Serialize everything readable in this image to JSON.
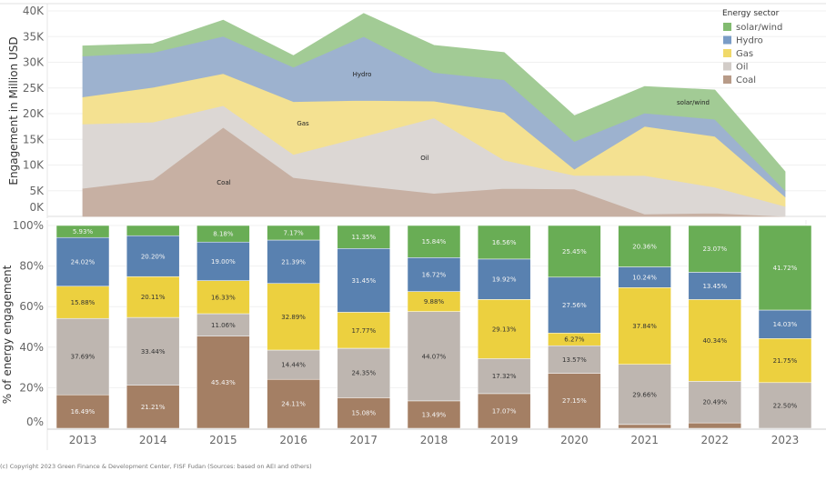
{
  "footer": "(c) Copyright 2023 Green Finance & Development Center, FISF Fudan (Sources: based on AEI and others)",
  "legend": {
    "title": "Energy sector",
    "items": [
      "solar/wind",
      "Hydro",
      "Gas",
      "Oil",
      "Coal"
    ]
  },
  "colors": {
    "area": {
      "Coal": "#c7b0a3",
      "Oil": "#dcd7d4",
      "Gas": "#f4e191",
      "Hydro": "#9db2cf",
      "solar/wind": "#a2cb95"
    },
    "bar": {
      "Coal": "#a47f64",
      "Oil": "#beb6b0",
      "Gas": "#ecd03f",
      "Hydro": "#5981b0",
      "solar/wind": "#69ad55"
    }
  },
  "chart_data": [
    {
      "type": "area",
      "title": "",
      "xlabel": "",
      "ylabel": "Engagement in Million USD",
      "ylim": [
        0,
        40000
      ],
      "yticks": [
        "0K",
        "5K",
        "10K",
        "15K",
        "20K",
        "25K",
        "30K",
        "35K",
        "40K"
      ],
      "stacked": true,
      "grid": true,
      "legend_position": "top-right",
      "categories": [
        "2013",
        "2014",
        "2015",
        "2016",
        "2017",
        "2018",
        "2019",
        "2020",
        "2021",
        "2022",
        "2023"
      ],
      "series": [
        {
          "name": "Coal",
          "values": [
            5470,
            7130,
            17350,
            7550,
            5960,
            4490,
            5450,
            5320,
            470,
            650,
            0
          ]
        },
        {
          "name": "Oil",
          "values": [
            12510,
            11240,
            4220,
            4520,
            9620,
            14680,
            5530,
            2660,
            7500,
            5040,
            1960
          ]
        },
        {
          "name": "Gas",
          "values": [
            5270,
            6760,
            6240,
            10290,
            7020,
            3290,
            9290,
            1230,
            9570,
            9920,
            1890
          ]
        },
        {
          "name": "Hydro",
          "values": [
            7970,
            6790,
            7260,
            6700,
            12420,
            5570,
            6350,
            5400,
            2590,
            3310,
            1220
          ]
        },
        {
          "name": "solar/wind",
          "values": [
            1970,
            1690,
            3120,
            2240,
            4480,
            5270,
            5280,
            4990,
            5150,
            5680,
            3630
          ]
        }
      ],
      "annotations": [
        {
          "text": "Coal",
          "series": "Coal",
          "at": "2015"
        },
        {
          "text": "Gas",
          "series": "Gas",
          "at": "2016"
        },
        {
          "text": "Hydro",
          "series": "Hydro",
          "at": "2017"
        },
        {
          "text": "Oil",
          "series": "Oil",
          "at": "2018"
        },
        {
          "text": "solar/wind",
          "series": "solar/wind",
          "at": "2022"
        }
      ]
    },
    {
      "type": "bar",
      "stacked": true,
      "title": "",
      "xlabel": "",
      "ylabel": "% of energy engagement",
      "ylim": [
        0,
        100
      ],
      "yticks": [
        "0%",
        "20%",
        "40%",
        "60%",
        "80%",
        "100%"
      ],
      "grid": true,
      "categories": [
        "2013",
        "2014",
        "2015",
        "2016",
        "2017",
        "2018",
        "2019",
        "2020",
        "2021",
        "2022",
        "2023"
      ],
      "series": [
        {
          "name": "Coal",
          "values": [
            16.49,
            21.21,
            45.43,
            24.11,
            15.08,
            13.49,
            17.07,
            27.15,
            1.86,
            2.65,
            0
          ],
          "labels": [
            "16.49%",
            "21.21%",
            "45.43%",
            "24.11%",
            "15.08%",
            "13.49%",
            "17.07%",
            "27.15%",
            "",
            "",
            ""
          ]
        },
        {
          "name": "Oil",
          "values": [
            37.69,
            33.44,
            11.06,
            14.44,
            24.35,
            44.07,
            17.32,
            13.57,
            29.66,
            20.49,
            22.5
          ],
          "labels": [
            "37.69%",
            "33.44%",
            "11.06%",
            "14.44%",
            "24.35%",
            "44.07%",
            "17.32%",
            "13.57%",
            "29.66%",
            "20.49%",
            "22.50%"
          ]
        },
        {
          "name": "Gas",
          "values": [
            15.88,
            20.11,
            16.33,
            32.89,
            17.77,
            9.88,
            29.13,
            6.27,
            37.84,
            40.34,
            21.75
          ],
          "labels": [
            "15.88%",
            "20.11%",
            "16.33%",
            "32.89%",
            "17.77%",
            "9.88%",
            "29.13%",
            "6.27%",
            "37.84%",
            "40.34%",
            "21.75%"
          ]
        },
        {
          "name": "Hydro",
          "values": [
            24.02,
            20.2,
            19.0,
            21.39,
            31.45,
            16.72,
            19.92,
            27.56,
            10.24,
            13.45,
            14.03
          ],
          "labels": [
            "24.02%",
            "20.20%",
            "19.00%",
            "21.39%",
            "31.45%",
            "16.72%",
            "19.92%",
            "27.56%",
            "10.24%",
            "13.45%",
            "14.03%"
          ]
        },
        {
          "name": "solar/wind",
          "values": [
            5.93,
            5.04,
            8.18,
            7.17,
            11.35,
            15.84,
            16.56,
            25.45,
            20.36,
            23.07,
            41.72
          ],
          "labels": [
            "5.93%",
            "",
            "8.18%",
            "7.17%",
            "11.35%",
            "15.84%",
            "16.56%",
            "25.45%",
            "20.36%",
            "23.07%",
            "41.72%"
          ]
        }
      ]
    }
  ]
}
